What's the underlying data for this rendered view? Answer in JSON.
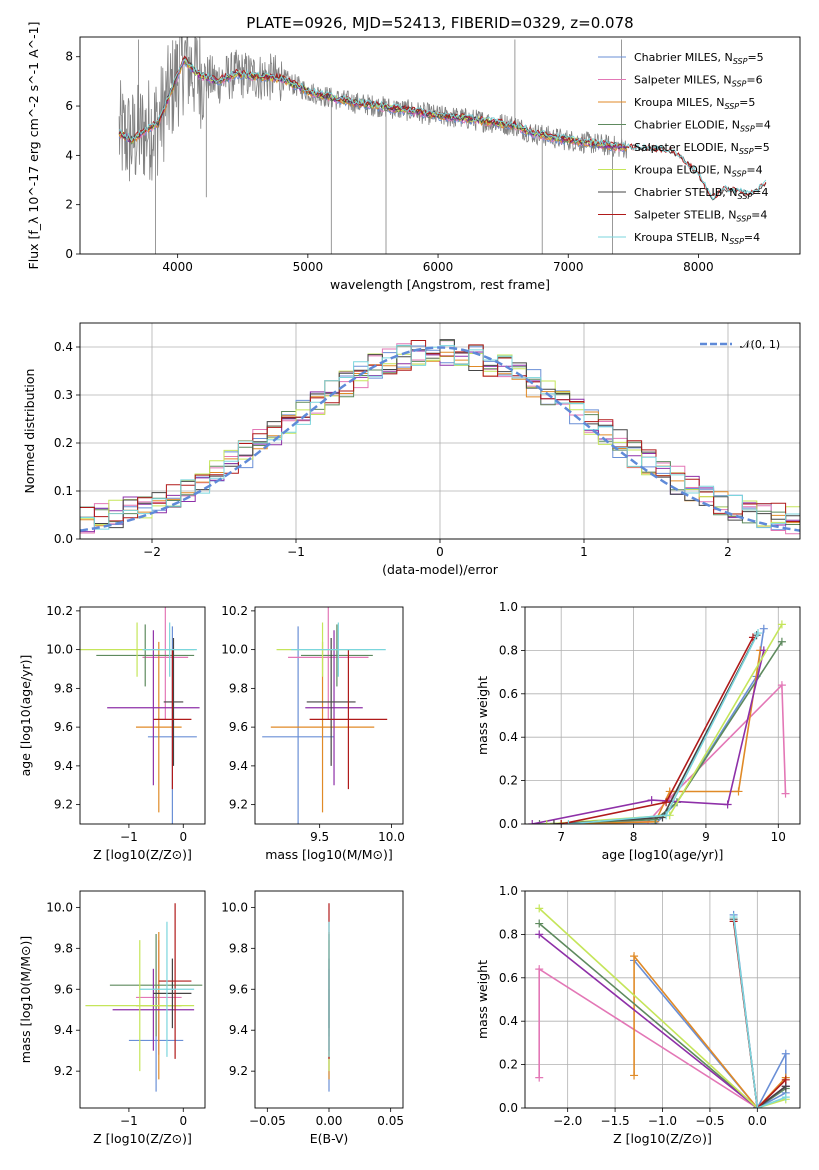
{
  "title": "PLATE=0926, MJD=52413, FIBERID=0329, z=0.078",
  "colors": {
    "chabrier_miles": "#6a8fd6",
    "salpeter_miles": "#e377b6",
    "kroupa_miles": "#e08a27",
    "chabrier_elodie": "#5e8a5e",
    "salpeter_elodie": "#8e30a8",
    "kroupa_elodie": "#c5e55a",
    "chabrier_stelib": "#454545",
    "salpeter_stelib": "#b01a1a",
    "kroupa_stelib": "#7bd6dd",
    "data": "#808080",
    "normal": "#5f8ad8"
  },
  "legend": [
    {
      "pre": "Chabrier MILES, N",
      "sub": "SSP",
      "post": "=5",
      "color": "#6a8fd6"
    },
    {
      "pre": "Salpeter MILES, N",
      "sub": "SSP",
      "post": "=6",
      "color": "#e377b6"
    },
    {
      "pre": "Kroupa MILES, N",
      "sub": "SSP",
      "post": "=5",
      "color": "#e08a27"
    },
    {
      "pre": "Chabrier ELODIE, N",
      "sub": "SSP",
      "post": "=4",
      "color": "#5e8a5e"
    },
    {
      "pre": "Salpeter ELODIE, N",
      "sub": "SSP",
      "post": "=5",
      "color": "#8e30a8"
    },
    {
      "pre": "Kroupa ELODIE, N",
      "sub": "SSP",
      "post": "=4",
      "color": "#c5e55a"
    },
    {
      "pre": "Chabrier STELIB, N",
      "sub": "SSP",
      "post": "=4",
      "color": "#454545"
    },
    {
      "pre": "Salpeter STELIB, N",
      "sub": "SSP",
      "post": "=4",
      "color": "#b01a1a"
    },
    {
      "pre": "Kroupa STELIB, N",
      "sub": "SSP",
      "post": "=4",
      "color": "#7bd6dd"
    }
  ],
  "normal_legend": "𝒩(0, 1)",
  "chart_data": [
    {
      "id": "spectrum",
      "type": "line",
      "xlabel": "wavelength [Angstrom, rest frame]",
      "ylabel": "Flux [f_λ 10^-17 erg cm^-2 s^-1 A^-1]",
      "xlim": [
        3250,
        8780
      ],
      "ylim": [
        0,
        8.8
      ],
      "xticks": [
        4000,
        5000,
        6000,
        7000,
        8000
      ],
      "yticks": [
        0,
        2,
        4,
        6,
        8
      ],
      "model_continuum": [
        [
          3550,
          4.9
        ],
        [
          3650,
          4.6
        ],
        [
          3750,
          5.0
        ],
        [
          3850,
          5.3
        ],
        [
          3950,
          6.6
        ],
        [
          4050,
          7.9
        ],
        [
          4150,
          7.3
        ],
        [
          4300,
          7.0
        ],
        [
          4450,
          7.3
        ],
        [
          4600,
          7.2
        ],
        [
          4800,
          7.1
        ],
        [
          5000,
          6.6
        ],
        [
          5200,
          6.3
        ],
        [
          5400,
          6.1
        ],
        [
          5600,
          5.95
        ],
        [
          5800,
          5.8
        ],
        [
          6000,
          5.6
        ],
        [
          6200,
          5.5
        ],
        [
          6400,
          5.35
        ],
        [
          6600,
          5.2
        ],
        [
          6700,
          4.95
        ],
        [
          6900,
          4.7
        ],
        [
          7100,
          4.55
        ],
        [
          7300,
          4.4
        ],
        [
          7450,
          4.3
        ],
        [
          7600,
          4.25
        ],
        [
          7800,
          4.15
        ],
        [
          8000,
          3.2
        ],
        [
          8100,
          2.2
        ],
        [
          8200,
          2.6
        ],
        [
          8400,
          2.4
        ],
        [
          8520,
          2.8
        ]
      ],
      "data_range": [
        3550,
        7450
      ],
      "data_spikes": [
        [
          3700,
          8.7
        ],
        [
          3830,
          0.0
        ],
        [
          4000,
          8.5
        ],
        [
          4220,
          2.3
        ],
        [
          5180,
          0.0
        ],
        [
          5600,
          0.0
        ],
        [
          6590,
          8.7
        ],
        [
          6800,
          0.0
        ],
        [
          7340,
          0.0
        ],
        [
          7410,
          8.7
        ]
      ]
    },
    {
      "id": "residuals",
      "type": "histogram",
      "xlabel": "(data-model)/error",
      "ylabel": "Normed distribution",
      "xlim": [
        -2.5,
        2.5
      ],
      "ylim": [
        0,
        0.45
      ],
      "xticks": [
        -2,
        -1,
        0,
        1,
        2
      ],
      "yticks": [
        0.0,
        0.1,
        0.2,
        0.3,
        0.4
      ],
      "bin_width": 0.1,
      "reference_curve": "standard normal N(0,1)"
    },
    {
      "id": "z-age",
      "type": "scatter",
      "xlabel": "Z [log10(Z/Z⊙)]",
      "ylabel": "age [log10(age/yr)]",
      "xlim": [
        -1.9,
        0.4
      ],
      "ylim": [
        9.1,
        10.22
      ],
      "xticks": [
        -1,
        0
      ],
      "yticks": [
        9.2,
        9.4,
        9.6,
        9.8,
        10.0,
        10.2
      ],
      "points": [
        {
          "series": "Chabrier MILES",
          "x": -0.2,
          "xerr": 0.45,
          "y": 9.55,
          "yerr": 0.57
        },
        {
          "series": "Salpeter MILES",
          "x": -0.33,
          "xerr": 0.42,
          "y": 9.96,
          "yerr": 0.32
        },
        {
          "series": "Kroupa MILES",
          "x": -0.45,
          "xerr": 0.42,
          "y": 9.6,
          "yerr": 0.44
        },
        {
          "series": "Chabrier ELODIE",
          "x": -0.7,
          "xerr": 0.9,
          "y": 9.97,
          "yerr": 0.16
        },
        {
          "series": "Salpeter ELODIE",
          "x": -0.55,
          "xerr": 0.85,
          "y": 9.7,
          "yerr": 0.4
        },
        {
          "series": "Kroupa ELODIE",
          "x": -0.85,
          "xerr": 1.05,
          "y": 10.0,
          "yerr": 0.14
        },
        {
          "series": "Chabrier STELIB",
          "x": -0.18,
          "xerr": 0.18,
          "y": 9.73,
          "yerr": 0.33
        },
        {
          "series": "Salpeter STELIB",
          "x": -0.2,
          "xerr": 0.35,
          "y": 9.64,
          "yerr": 0.36
        },
        {
          "series": "Kroupa STELIB",
          "x": -0.25,
          "xerr": 0.5,
          "y": 10.0,
          "yerr": 0.14
        }
      ]
    },
    {
      "id": "mass-age",
      "type": "scatter",
      "xlabel": "mass [log10(M/M⊙)]",
      "ylabel": "",
      "xlim": [
        9.05,
        10.08
      ],
      "ylim": [
        9.1,
        10.22
      ],
      "xticks": [
        9.5,
        10.0
      ],
      "yticks": [
        9.2,
        9.4,
        9.6,
        9.8,
        10.0,
        10.2
      ],
      "points": [
        {
          "series": "Chabrier MILES",
          "x": 9.35,
          "xerr": 0.25,
          "y": 9.55,
          "yerr": 0.57
        },
        {
          "series": "Salpeter MILES",
          "x": 9.56,
          "xerr": 0.28,
          "y": 9.96,
          "yerr": 0.32
        },
        {
          "series": "Kroupa MILES",
          "x": 9.52,
          "xerr": 0.36,
          "y": 9.6,
          "yerr": 0.44
        },
        {
          "series": "Chabrier ELODIE",
          "x": 9.62,
          "xerr": 0.25,
          "y": 9.97,
          "yerr": 0.16
        },
        {
          "series": "Salpeter ELODIE",
          "x": 9.6,
          "xerr": 0.2,
          "y": 9.7,
          "yerr": 0.4
        },
        {
          "series": "Kroupa ELODIE",
          "x": 9.52,
          "xerr": 0.32,
          "y": 10.0,
          "yerr": 0.14
        },
        {
          "series": "Chabrier STELIB",
          "x": 9.58,
          "xerr": 0.17,
          "y": 9.73,
          "yerr": 0.33
        },
        {
          "series": "Salpeter STELIB",
          "x": 9.7,
          "xerr": 0.27,
          "y": 9.64,
          "yerr": 0.36
        },
        {
          "series": "Kroupa STELIB",
          "x": 9.63,
          "xerr": 0.33,
          "y": 10.0,
          "yerr": 0.14
        }
      ]
    },
    {
      "id": "age-weight",
      "type": "line",
      "xlabel": "age [log10(age/yr)]",
      "ylabel": "mass weight",
      "xlim": [
        6.5,
        10.3
      ],
      "ylim": [
        0,
        1.0
      ],
      "xticks": [
        7,
        8,
        9,
        10
      ],
      "yticks": [
        0.0,
        0.2,
        0.4,
        0.6,
        0.8,
        1.0
      ],
      "series": [
        {
          "name": "Chabrier MILES",
          "points": [
            [
              6.8,
              0.0
            ],
            [
              8.3,
              0.0
            ],
            [
              8.6,
              0.1
            ],
            [
              9.7,
              0.68
            ],
            [
              9.8,
              0.9
            ]
          ]
        },
        {
          "name": "Salpeter MILES",
          "points": [
            [
              6.9,
              0.0
            ],
            [
              8.2,
              0.01
            ],
            [
              8.5,
              0.12
            ],
            [
              10.05,
              0.64
            ],
            [
              10.1,
              0.14
            ]
          ]
        },
        {
          "name": "Kroupa MILES",
          "points": [
            [
              7.0,
              0.0
            ],
            [
              8.3,
              0.01
            ],
            [
              8.5,
              0.15
            ],
            [
              9.45,
              0.15
            ],
            [
              9.75,
              0.8
            ]
          ]
        },
        {
          "name": "Chabrier ELODIE",
          "points": [
            [
              6.7,
              0.0
            ],
            [
              8.3,
              0.02
            ],
            [
              8.6,
              0.1
            ],
            [
              10.05,
              0.84
            ]
          ]
        },
        {
          "name": "Salpeter ELODIE",
          "points": [
            [
              6.6,
              0.0
            ],
            [
              8.25,
              0.11
            ],
            [
              9.3,
              0.09
            ],
            [
              9.8,
              0.8
            ]
          ]
        },
        {
          "name": "Kroupa ELODIE",
          "points": [
            [
              6.8,
              0.0
            ],
            [
              8.5,
              0.04
            ],
            [
              10.05,
              0.92
            ]
          ]
        },
        {
          "name": "Chabrier STELIB",
          "points": [
            [
              6.9,
              0.0
            ],
            [
              8.4,
              0.03
            ],
            [
              9.7,
              0.87
            ]
          ]
        },
        {
          "name": "Salpeter STELIB",
          "points": [
            [
              7.0,
              0.0
            ],
            [
              8.45,
              0.1
            ],
            [
              9.65,
              0.86
            ]
          ]
        },
        {
          "name": "Kroupa STELIB",
          "points": [
            [
              7.1,
              0.0
            ],
            [
              8.45,
              0.04
            ],
            [
              9.72,
              0.88
            ]
          ]
        }
      ]
    },
    {
      "id": "z-mass",
      "type": "scatter",
      "xlabel": "Z [log10(Z/Z⊙)]",
      "ylabel": "mass [log10(M/M⊙)]",
      "xlim": [
        -1.9,
        0.4
      ],
      "ylim": [
        9.02,
        10.08
      ],
      "xticks": [
        -1,
        0
      ],
      "yticks": [
        9.2,
        9.4,
        9.6,
        9.8,
        10.0
      ],
      "points": [
        {
          "series": "Chabrier MILES",
          "x": -0.5,
          "xerr": 0.5,
          "y": 9.35,
          "yerr": 0.25
        },
        {
          "series": "Salpeter MILES",
          "x": -0.45,
          "xerr": 0.42,
          "y": 9.56,
          "yerr": 0.28
        },
        {
          "series": "Kroupa MILES",
          "x": -0.45,
          "xerr": 0.42,
          "y": 9.52,
          "yerr": 0.36
        },
        {
          "series": "Chabrier ELODIE",
          "x": -0.5,
          "xerr": 0.85,
          "y": 9.62,
          "yerr": 0.25
        },
        {
          "series": "Salpeter ELODIE",
          "x": -0.55,
          "xerr": 0.75,
          "y": 9.5,
          "yerr": 0.2
        },
        {
          "series": "Kroupa ELODIE",
          "x": -0.8,
          "xerr": 1.0,
          "y": 9.52,
          "yerr": 0.32
        },
        {
          "series": "Chabrier STELIB",
          "x": -0.2,
          "xerr": 0.35,
          "y": 9.58,
          "yerr": 0.17
        },
        {
          "series": "Salpeter STELIB",
          "x": -0.15,
          "xerr": 0.3,
          "y": 9.64,
          "yerr": 0.38
        },
        {
          "series": "Kroupa STELIB",
          "x": -0.3,
          "xerr": 0.5,
          "y": 9.6,
          "yerr": 0.33
        }
      ]
    },
    {
      "id": "ebv-mass",
      "type": "scatter",
      "xlabel": "E(B-V)",
      "ylabel": "",
      "xlim": [
        -0.06,
        0.06
      ],
      "ylim": [
        9.02,
        10.08
      ],
      "xticks": [
        -0.05,
        0.0,
        0.05
      ],
      "yticks": [
        9.2,
        9.4,
        9.6,
        9.8,
        10.0
      ],
      "points": [
        {
          "series": "Chabrier MILES",
          "x": 0.0,
          "y": 9.35,
          "yerr": 0.25
        },
        {
          "series": "Salpeter MILES",
          "x": 0.0,
          "y": 9.56,
          "yerr": 0.28
        },
        {
          "series": "Kroupa MILES",
          "x": 0.0,
          "y": 9.52,
          "yerr": 0.36
        },
        {
          "series": "Chabrier ELODIE",
          "x": 0.0,
          "y": 9.62,
          "yerr": 0.25
        },
        {
          "series": "Salpeter ELODIE",
          "x": 0.0,
          "y": 9.5,
          "yerr": 0.2
        },
        {
          "series": "Kroupa ELODIE",
          "x": 0.0,
          "y": 9.52,
          "yerr": 0.32
        },
        {
          "series": "Chabrier STELIB",
          "x": 0.0,
          "y": 9.58,
          "yerr": 0.17
        },
        {
          "series": "Salpeter STELIB",
          "x": 0.0,
          "y": 9.64,
          "yerr": 0.38
        },
        {
          "series": "Kroupa STELIB",
          "x": 0.0,
          "y": 9.6,
          "yerr": 0.33
        }
      ]
    },
    {
      "id": "z-weight",
      "type": "line",
      "xlabel": "Z [log10(Z/Z⊙)]",
      "ylabel": "mass weight",
      "xlim": [
        -2.45,
        0.45
      ],
      "ylim": [
        0,
        1.0
      ],
      "xticks": [
        -2.0,
        -1.5,
        -1.0,
        -0.5,
        0.0
      ],
      "yticks": [
        0.0,
        0.2,
        0.4,
        0.6,
        0.8,
        1.0
      ],
      "series": [
        {
          "name": "Chabrier MILES",
          "points": [
            [
              -1.3,
              0.68
            ],
            [
              0.0,
              0.0
            ],
            [
              0.3,
              0.25
            ],
            [
              0.3,
              0.07
            ],
            [
              0.0,
              0.0
            ],
            [
              -0.25,
              0.89
            ]
          ]
        },
        {
          "name": "Salpeter MILES",
          "points": [
            [
              -2.3,
              0.14
            ],
            [
              -2.3,
              0.64
            ],
            [
              0.0,
              0.0
            ],
            [
              0.3,
              0.1
            ]
          ]
        },
        {
          "name": "Kroupa MILES",
          "points": [
            [
              -1.3,
              0.15
            ],
            [
              -1.3,
              0.7
            ],
            [
              0.0,
              0.0
            ],
            [
              0.3,
              0.14
            ]
          ]
        },
        {
          "name": "Chabrier ELODIE",
          "points": [
            [
              -2.3,
              0.85
            ],
            [
              0.0,
              0.0
            ],
            [
              0.3,
              0.09
            ]
          ]
        },
        {
          "name": "Salpeter ELODIE",
          "points": [
            [
              -2.3,
              0.8
            ],
            [
              0.0,
              0.0
            ],
            [
              0.3,
              0.1
            ]
          ]
        },
        {
          "name": "Kroupa ELODIE",
          "points": [
            [
              -2.3,
              0.92
            ],
            [
              0.0,
              0.0
            ],
            [
              0.3,
              0.04
            ]
          ]
        },
        {
          "name": "Chabrier STELIB",
          "points": [
            [
              -0.25,
              0.87
            ],
            [
              0.0,
              0.0
            ],
            [
              0.3,
              0.1
            ]
          ]
        },
        {
          "name": "Salpeter STELIB",
          "points": [
            [
              -0.25,
              0.86
            ],
            [
              0.0,
              0.0
            ],
            [
              0.3,
              0.13
            ]
          ]
        },
        {
          "name": "Kroupa STELIB",
          "points": [
            [
              -0.25,
              0.88
            ],
            [
              0.0,
              0.0
            ],
            [
              0.3,
              0.05
            ]
          ]
        }
      ]
    }
  ]
}
